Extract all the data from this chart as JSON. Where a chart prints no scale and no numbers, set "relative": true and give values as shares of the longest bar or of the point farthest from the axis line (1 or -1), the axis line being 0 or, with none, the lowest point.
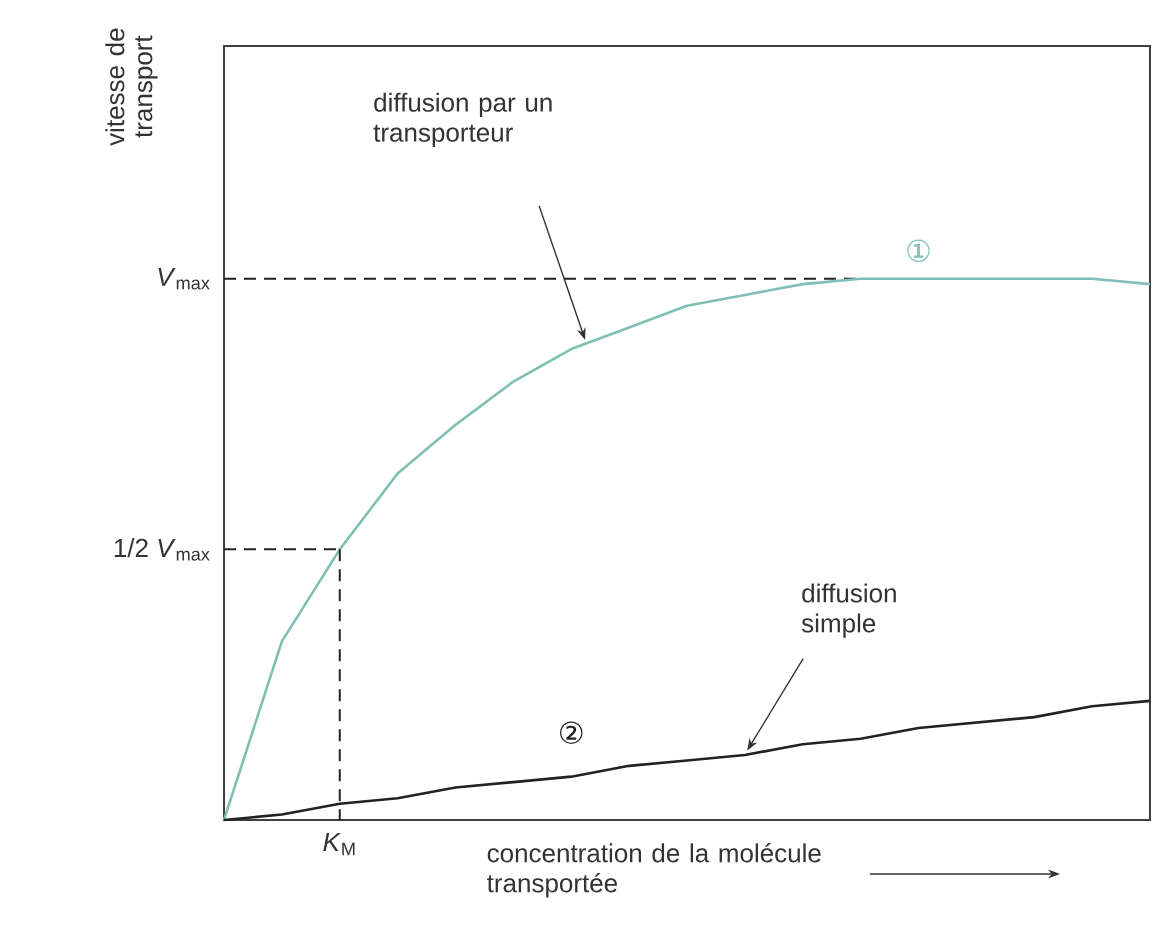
{
  "chart_data": {
    "type": "line",
    "relative": true,
    "xlabel": "concentration de la molécule transportée",
    "categories": [
      null,
      null,
      null,
      null,
      null,
      null,
      null,
      null,
      null,
      null,
      null,
      null,
      null,
      null,
      null,
      null,
      null
    ],
    "series": [
      {
        "name": "①",
        "color": "#7fbfb5",
        "values": [
          0,
          0.33,
          0.5,
          0.64,
          0.73,
          0.81,
          0.87,
          0.91,
          0.95,
          0.97,
          0.99,
          1.0,
          1.0,
          1.0,
          1.0,
          1.0,
          0.99
        ]
      },
      {
        "name": "②",
        "color": "#222222",
        "values": [
          0,
          0.01,
          0.03,
          0.04,
          0.06,
          0.07,
          0.08,
          0.1,
          0.11,
          0.12,
          0.14,
          0.15,
          0.17,
          0.18,
          0.19,
          0.21,
          0.22
        ]
      }
    ],
    "ref_lines": [
      {
        "axis": "y",
        "value": 1,
        "label": "*V*$_{max}$",
        "line_style": "dashed"
      },
      {
        "axis": "y",
        "value": 0.5,
        "label": "1/2 *V*$_{max}$",
        "line_style": "dashed"
      }
    ],
    "annotations": [
      "diffusion par un transporteur",
      "diffusion simple",
      "*K*$_{M}$",
      "vitesse de transport"
    ]
  }
}
